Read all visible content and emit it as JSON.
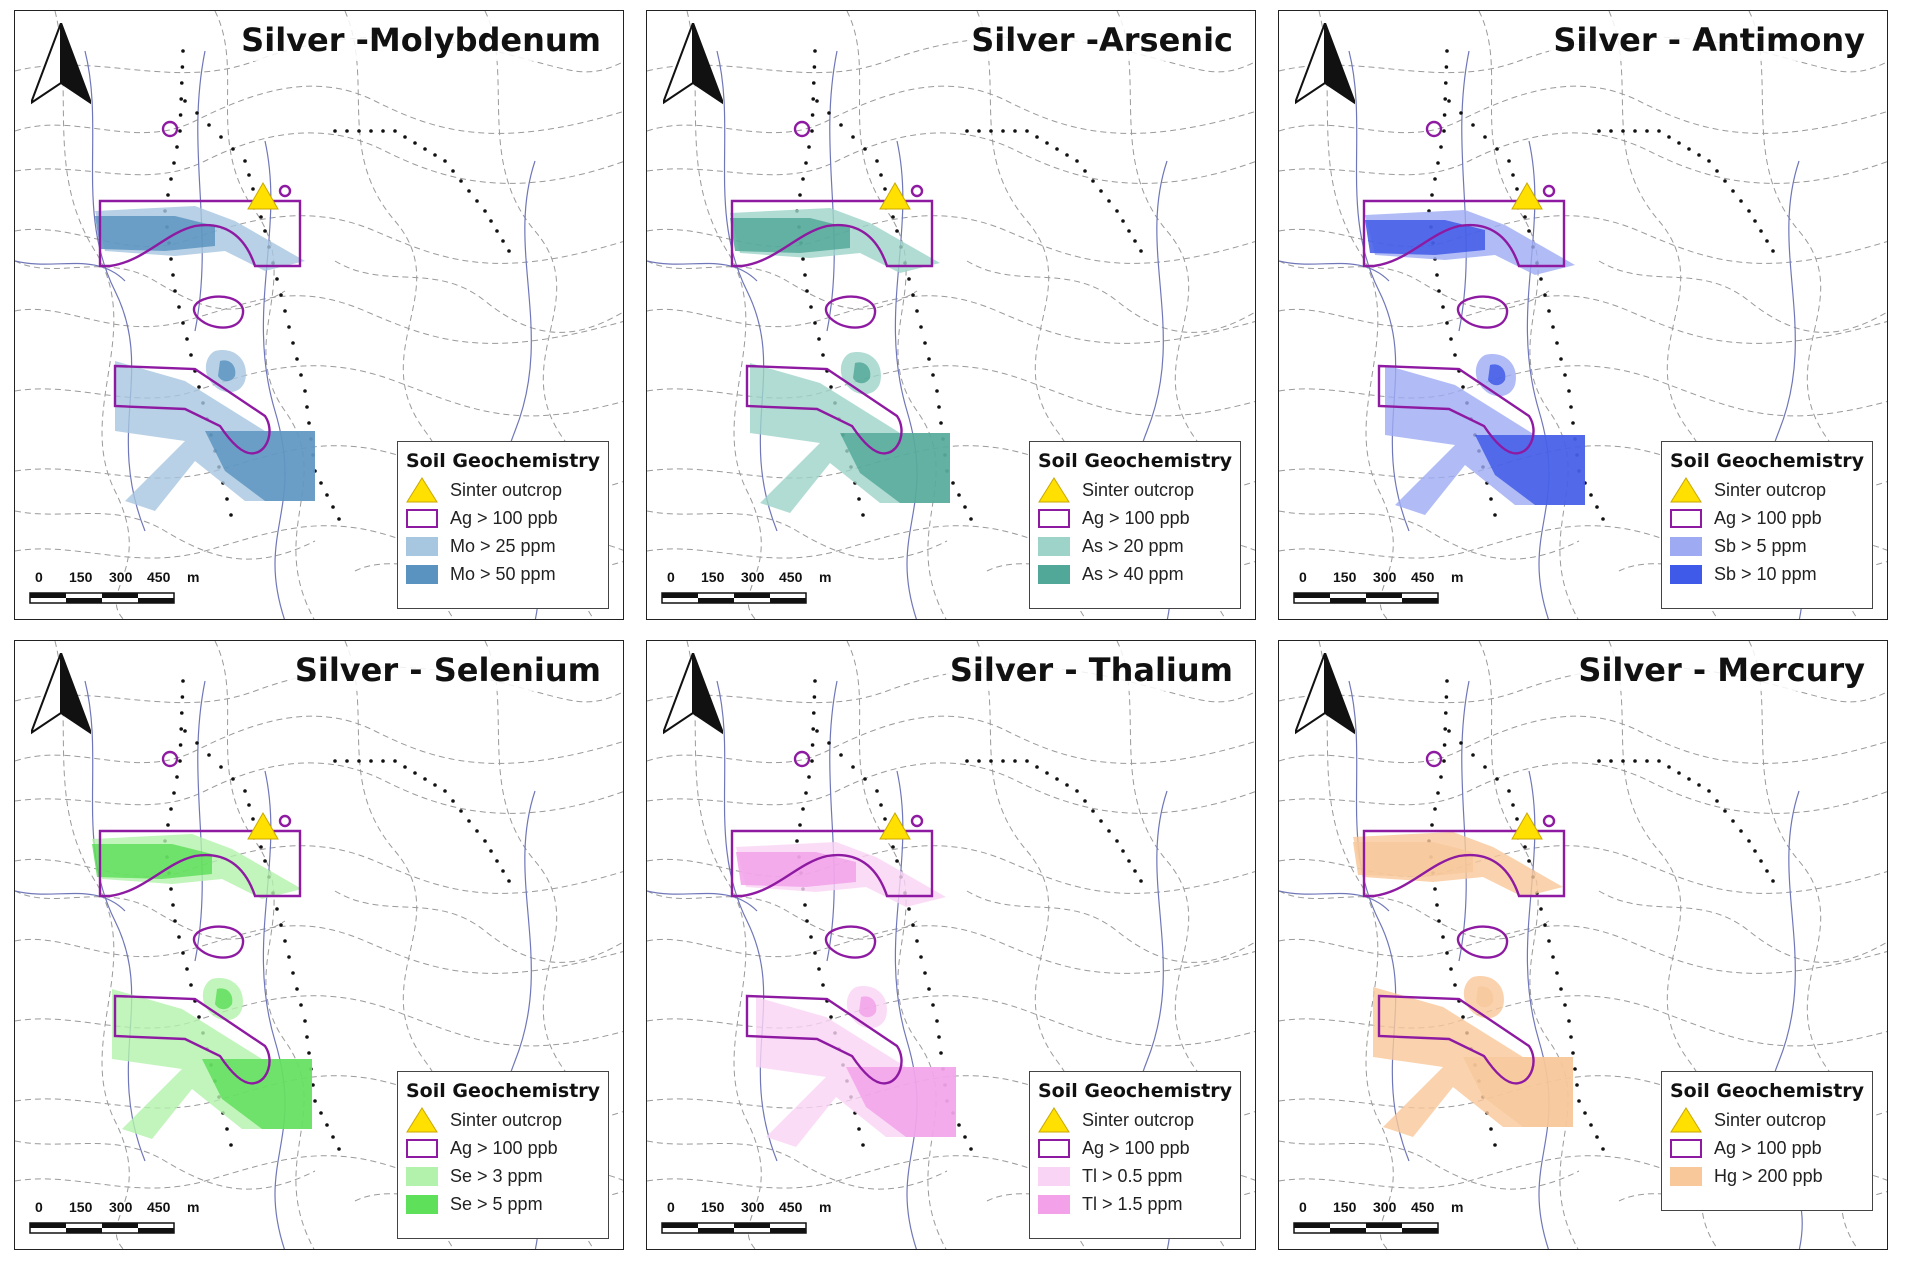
{
  "panels": [
    {
      "title": "Silver -Molybdenum",
      "legend_title": "Soil Geochemistry",
      "legend": [
        {
          "label": "Sinter outcrop",
          "type": "triangle",
          "color": "#ffe000"
        },
        {
          "label": "Ag > 100 ppb",
          "type": "outline",
          "color": "#8e1aa2"
        },
        {
          "label": "Mo > 25 ppm",
          "type": "fill",
          "color": "#a7c6df"
        },
        {
          "label": "Mo > 50 ppm",
          "type": "fill",
          "color": "#5a93c0"
        }
      ],
      "low_color": "#a7c6df",
      "high_color": "#5a93c0"
    },
    {
      "title": "Silver -Arsenic",
      "legend_title": "Soil Geochemistry",
      "legend": [
        {
          "label": "Sinter outcrop",
          "type": "triangle",
          "color": "#ffe000"
        },
        {
          "label": "Ag > 100 ppb",
          "type": "outline",
          "color": "#8e1aa2"
        },
        {
          "label": "As > 20 ppm",
          "type": "fill",
          "color": "#9dd3c8"
        },
        {
          "label": "As > 40 ppm",
          "type": "fill",
          "color": "#52a898"
        }
      ],
      "low_color": "#9dd3c8",
      "high_color": "#52a898"
    },
    {
      "title": "Silver - Antimony",
      "legend_title": "Soil Geochemistry",
      "legend": [
        {
          "label": "Sinter outcrop",
          "type": "triangle",
          "color": "#ffe000"
        },
        {
          "label": "Ag > 100 ppb",
          "type": "outline",
          "color": "#8e1aa2"
        },
        {
          "label": "Sb > 5 ppm",
          "type": "fill",
          "color": "#9eabf3"
        },
        {
          "label": "Sb > 10 ppm",
          "type": "fill",
          "color": "#3f5ae8"
        }
      ],
      "low_color": "#9eabf3",
      "high_color": "#3f5ae8"
    },
    {
      "title": "Silver - Selenium",
      "legend_title": "Soil Geochemistry",
      "legend": [
        {
          "label": "Sinter outcrop",
          "type": "triangle",
          "color": "#ffe000"
        },
        {
          "label": "Ag > 100 ppb",
          "type": "outline",
          "color": "#8e1aa2"
        },
        {
          "label": "Se > 3 ppm",
          "type": "fill",
          "color": "#b3f2ac"
        },
        {
          "label": "Se > 5 ppm",
          "type": "fill",
          "color": "#5ee05a"
        }
      ],
      "low_color": "#b3f2ac",
      "high_color": "#5ee05a"
    },
    {
      "title": "Silver - Thalium",
      "legend_title": "Soil Geochemistry",
      "legend": [
        {
          "label": "Sinter outcrop",
          "type": "triangle",
          "color": "#ffe000"
        },
        {
          "label": "Ag > 100 ppb",
          "type": "outline",
          "color": "#8e1aa2"
        },
        {
          "label": "Tl > 0.5 ppm",
          "type": "fill",
          "color": "#f9d4f4"
        },
        {
          "label": "Tl > 1.5 ppm",
          "type": "fill",
          "color": "#f3a2ea"
        }
      ],
      "low_color": "#f9d4f4",
      "high_color": "#f3a2ea"
    },
    {
      "title": "Silver - Mercury",
      "legend_title": "Soil Geochemistry",
      "legend": [
        {
          "label": "Sinter outcrop",
          "type": "triangle",
          "color": "#ffe000"
        },
        {
          "label": "Ag > 100 ppb",
          "type": "outline",
          "color": "#8e1aa2"
        },
        {
          "label": "Hg > 200 ppb",
          "type": "fill",
          "color": "#f8c89a"
        }
      ],
      "low_color": "#f8c89a",
      "high_color": "#f8c89a"
    }
  ],
  "scale": {
    "ticks": [
      "0",
      "150",
      "300",
      "450"
    ],
    "unit": "m"
  }
}
